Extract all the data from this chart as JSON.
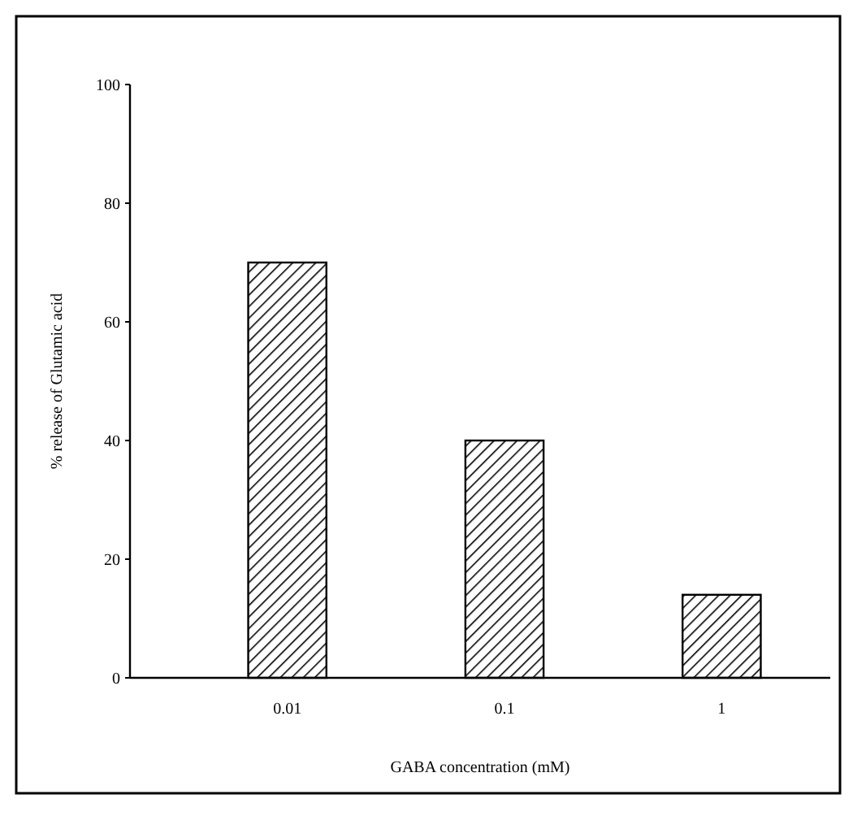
{
  "chart_data": {
    "type": "bar",
    "xlabel": "GABA concentration (mM)",
    "ylabel": "% release of Glutamic acid",
    "categories": [
      "0.01",
      "0.1",
      "1"
    ],
    "values": [
      70,
      40,
      14
    ],
    "color": "#000000",
    "ylim": [
      0,
      100
    ],
    "yticks": [
      0,
      20,
      40,
      60,
      80,
      100
    ],
    "grid": false
  }
}
